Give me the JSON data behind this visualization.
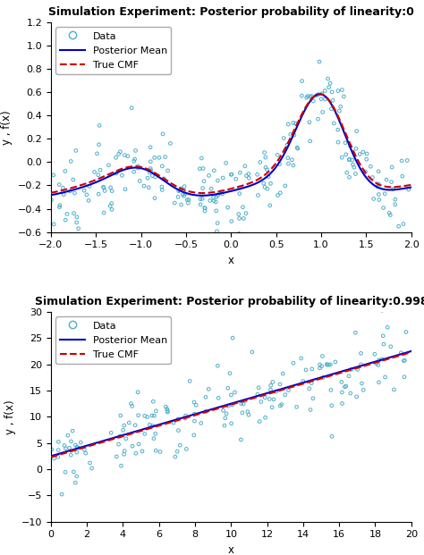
{
  "plot1": {
    "title": "Simulation Experiment: Posterior probability of linearity:0",
    "xlabel": "x",
    "ylabel": "y , f(x)",
    "xlim": [
      -2,
      2
    ],
    "ylim": [
      -0.6,
      1.2
    ],
    "xticks": [
      -2,
      -1.5,
      -1,
      -0.5,
      0,
      0.5,
      1,
      1.5,
      2
    ],
    "yticks": [
      -0.6,
      -0.4,
      -0.2,
      0,
      0.2,
      0.4,
      0.6,
      0.8,
      1.0,
      1.2
    ],
    "scatter_color": "#4DAECC",
    "line_color": "#0000CD",
    "dashed_color": "#CC0000",
    "seed": 7
  },
  "plot2": {
    "title": "Simulation Experiment: Posterior probability of linearity:0.998",
    "xlabel": "x",
    "ylabel": "y , f(x)",
    "xlim": [
      0,
      20
    ],
    "ylim": [
      -10,
      30
    ],
    "xticks": [
      0,
      2,
      4,
      6,
      8,
      10,
      12,
      14,
      16,
      18,
      20
    ],
    "yticks": [
      -10,
      -5,
      0,
      5,
      10,
      15,
      20,
      25,
      30
    ],
    "scatter_color": "#4DAECC",
    "line_color": "#0000CD",
    "dashed_color": "#CC0000",
    "seed": 55
  },
  "legend_labels": [
    "Data",
    "Posterior Mean",
    "True CMF"
  ],
  "bg_color": "#ffffff",
  "title_fontsize": 9,
  "label_fontsize": 8.5,
  "tick_fontsize": 8
}
